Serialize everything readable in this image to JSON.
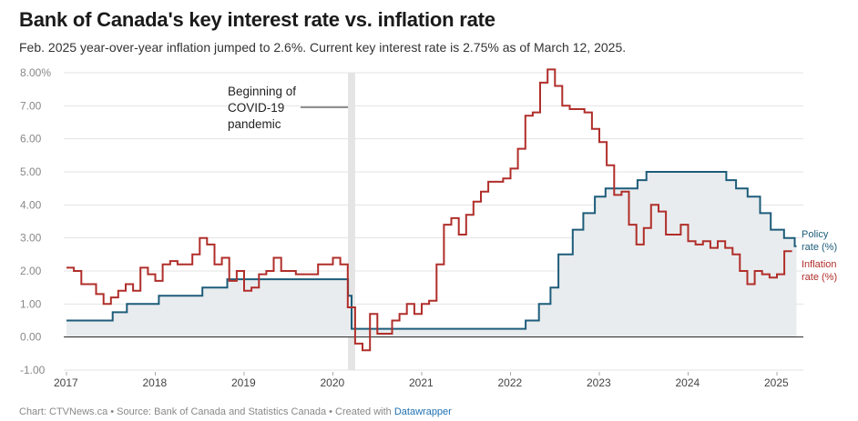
{
  "title": "Bank of Canada's key interest rate vs. inflation rate",
  "subtitle": "Feb. 2025 year-over-year inflation jumped to 2.6%. Current key interest rate is 2.75% as of March 12, 2025.",
  "footer": {
    "source": "Chart: CTVNews.ca • Source: Bank of Canada and Statistics Canada • Created with ",
    "tool": "Datawrapper"
  },
  "colors": {
    "policy": "#1d5c7a",
    "inflation": "#b02e2a",
    "area": "#e9ecee",
    "grid": "#e3e3e3",
    "covid_band": "#e4e4e4"
  },
  "annotation": {
    "lines": [
      "Beginning of",
      "COVID-19",
      "pandemic"
    ]
  },
  "series_labels": {
    "policy": [
      "Policy",
      "rate (%)"
    ],
    "inflation": [
      "Inflation",
      "rate (%)"
    ]
  },
  "chart_data": {
    "type": "line",
    "title": "Bank of Canada's key interest rate vs. inflation rate",
    "xlabel": "",
    "ylabel": "",
    "xlim": [
      2017.0,
      2025.3
    ],
    "ylim": [
      -1.0,
      8.0
    ],
    "y_ticks": [
      -1,
      0,
      1,
      2,
      3,
      4,
      5,
      6,
      7,
      8
    ],
    "y_tick_labels": [
      "-1.00",
      "0.00",
      "1.00",
      "2.00",
      "3.00",
      "4.00",
      "5.00",
      "6.00",
      "7.00",
      "8.00%"
    ],
    "x_ticks": [
      2017,
      2018,
      2019,
      2020,
      2021,
      2022,
      2023,
      2024,
      2025
    ],
    "x_tick_labels": [
      "2017",
      "2018",
      "2019",
      "2020",
      "2021",
      "2022",
      "2023",
      "2024",
      "2025"
    ],
    "covid_band": [
      2020.17,
      2020.25
    ],
    "series": [
      {
        "name": "Policy rate (%)",
        "style": "step-area",
        "points": [
          [
            2017.0,
            0.5
          ],
          [
            2017.52,
            0.75
          ],
          [
            2017.68,
            1.0
          ],
          [
            2018.04,
            1.25
          ],
          [
            2018.53,
            1.5
          ],
          [
            2018.81,
            1.75
          ],
          [
            2020.17,
            1.25
          ],
          [
            2020.21,
            0.25
          ],
          [
            2022.17,
            0.5
          ],
          [
            2022.32,
            1.0
          ],
          [
            2022.45,
            1.5
          ],
          [
            2022.54,
            2.5
          ],
          [
            2022.7,
            3.25
          ],
          [
            2022.82,
            3.75
          ],
          [
            2022.95,
            4.25
          ],
          [
            2023.07,
            4.5
          ],
          [
            2023.43,
            4.75
          ],
          [
            2023.53,
            5.0
          ],
          [
            2024.43,
            4.75
          ],
          [
            2024.54,
            4.5
          ],
          [
            2024.67,
            4.25
          ],
          [
            2024.81,
            3.75
          ],
          [
            2024.93,
            3.25
          ],
          [
            2025.08,
            3.0
          ],
          [
            2025.2,
            2.75
          ],
          [
            2025.22,
            2.75
          ]
        ]
      },
      {
        "name": "Inflation rate (%)",
        "style": "step",
        "points": [
          [
            2017.0,
            2.1
          ],
          [
            2017.083,
            2.0
          ],
          [
            2017.167,
            1.6
          ],
          [
            2017.25,
            1.6
          ],
          [
            2017.333,
            1.3
          ],
          [
            2017.417,
            1.0
          ],
          [
            2017.5,
            1.2
          ],
          [
            2017.583,
            1.4
          ],
          [
            2017.667,
            1.6
          ],
          [
            2017.75,
            1.4
          ],
          [
            2017.833,
            2.1
          ],
          [
            2017.917,
            1.9
          ],
          [
            2018.0,
            1.7
          ],
          [
            2018.083,
            2.2
          ],
          [
            2018.167,
            2.3
          ],
          [
            2018.25,
            2.2
          ],
          [
            2018.333,
            2.2
          ],
          [
            2018.417,
            2.5
          ],
          [
            2018.5,
            3.0
          ],
          [
            2018.583,
            2.8
          ],
          [
            2018.667,
            2.2
          ],
          [
            2018.75,
            2.4
          ],
          [
            2018.833,
            1.7
          ],
          [
            2018.917,
            2.0
          ],
          [
            2019.0,
            1.4
          ],
          [
            2019.083,
            1.5
          ],
          [
            2019.167,
            1.9
          ],
          [
            2019.25,
            2.0
          ],
          [
            2019.333,
            2.4
          ],
          [
            2019.417,
            2.0
          ],
          [
            2019.5,
            2.0
          ],
          [
            2019.583,
            1.9
          ],
          [
            2019.667,
            1.9
          ],
          [
            2019.75,
            1.9
          ],
          [
            2019.833,
            2.2
          ],
          [
            2019.917,
            2.2
          ],
          [
            2020.0,
            2.4
          ],
          [
            2020.083,
            2.2
          ],
          [
            2020.167,
            0.9
          ],
          [
            2020.25,
            -0.2
          ],
          [
            2020.333,
            -0.4
          ],
          [
            2020.417,
            0.7
          ],
          [
            2020.5,
            0.1
          ],
          [
            2020.583,
            0.1
          ],
          [
            2020.667,
            0.5
          ],
          [
            2020.75,
            0.7
          ],
          [
            2020.833,
            1.0
          ],
          [
            2020.917,
            0.7
          ],
          [
            2021.0,
            1.0
          ],
          [
            2021.083,
            1.1
          ],
          [
            2021.167,
            2.2
          ],
          [
            2021.25,
            3.4
          ],
          [
            2021.333,
            3.6
          ],
          [
            2021.417,
            3.1
          ],
          [
            2021.5,
            3.7
          ],
          [
            2021.583,
            4.1
          ],
          [
            2021.667,
            4.4
          ],
          [
            2021.75,
            4.7
          ],
          [
            2021.833,
            4.7
          ],
          [
            2021.917,
            4.8
          ],
          [
            2022.0,
            5.1
          ],
          [
            2022.083,
            5.7
          ],
          [
            2022.167,
            6.7
          ],
          [
            2022.25,
            6.8
          ],
          [
            2022.333,
            7.7
          ],
          [
            2022.417,
            8.1
          ],
          [
            2022.5,
            7.6
          ],
          [
            2022.583,
            7.0
          ],
          [
            2022.667,
            6.9
          ],
          [
            2022.75,
            6.9
          ],
          [
            2022.833,
            6.8
          ],
          [
            2022.917,
            6.3
          ],
          [
            2023.0,
            5.9
          ],
          [
            2023.083,
            5.2
          ],
          [
            2023.167,
            4.3
          ],
          [
            2023.25,
            4.4
          ],
          [
            2023.333,
            3.4
          ],
          [
            2023.417,
            2.8
          ],
          [
            2023.5,
            3.3
          ],
          [
            2023.583,
            4.0
          ],
          [
            2023.667,
            3.8
          ],
          [
            2023.75,
            3.1
          ],
          [
            2023.833,
            3.1
          ],
          [
            2023.917,
            3.4
          ],
          [
            2024.0,
            2.9
          ],
          [
            2024.083,
            2.8
          ],
          [
            2024.167,
            2.9
          ],
          [
            2024.25,
            2.7
          ],
          [
            2024.333,
            2.9
          ],
          [
            2024.417,
            2.7
          ],
          [
            2024.5,
            2.5
          ],
          [
            2024.583,
            2.0
          ],
          [
            2024.667,
            1.6
          ],
          [
            2024.75,
            2.0
          ],
          [
            2024.833,
            1.9
          ],
          [
            2024.917,
            1.8
          ],
          [
            2025.0,
            1.9
          ],
          [
            2025.083,
            2.6
          ],
          [
            2025.17,
            2.6
          ]
        ]
      }
    ]
  }
}
